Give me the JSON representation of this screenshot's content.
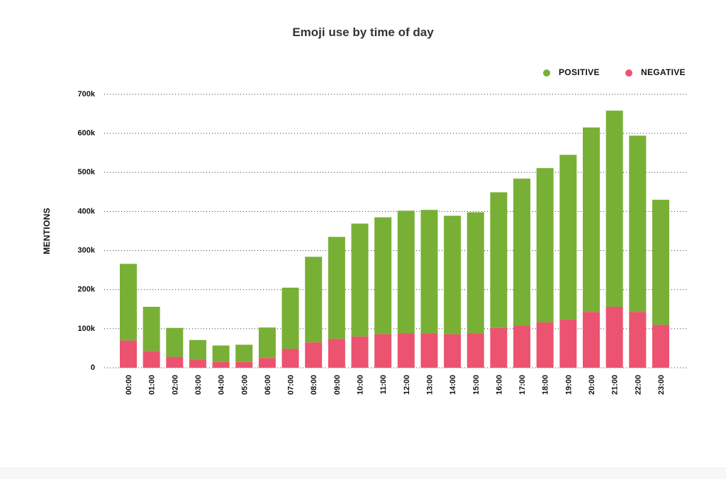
{
  "chart_data": {
    "type": "bar",
    "stacked": true,
    "title": "Emoji use by time of day",
    "ylabel": "MENTIONS",
    "xlabel": "",
    "ylim": [
      0,
      700000
    ],
    "yticks": [
      {
        "value": 0,
        "label": "0"
      },
      {
        "value": 100000,
        "label": "100k"
      },
      {
        "value": 200000,
        "label": "200k"
      },
      {
        "value": 300000,
        "label": "300k"
      },
      {
        "value": 400000,
        "label": "400k"
      },
      {
        "value": 500000,
        "label": "500k"
      },
      {
        "value": 600000,
        "label": "600k"
      },
      {
        "value": 700000,
        "label": "700k"
      }
    ],
    "grid": true,
    "legend_position": "top-right",
    "categories": [
      "00:00",
      "01:00",
      "02:00",
      "03:00",
      "04:00",
      "05:00",
      "06:00",
      "07:00",
      "08:00",
      "09:00",
      "10:00",
      "11:00",
      "12:00",
      "13:00",
      "14:00",
      "15:00",
      "16:00",
      "17:00",
      "18:00",
      "19:00",
      "20:00",
      "21:00",
      "22:00",
      "23:00"
    ],
    "series": [
      {
        "name": "NEGATIVE",
        "color": "#ec5370",
        "values": [
          70000,
          43000,
          28000,
          20000,
          15000,
          15000,
          25000,
          48000,
          65000,
          74000,
          80000,
          86000,
          88000,
          88000,
          86000,
          88000,
          102000,
          108000,
          116000,
          124000,
          143000,
          156000,
          143000,
          110000
        ]
      },
      {
        "name": "POSITIVE",
        "color": "#78b035",
        "values": [
          196000,
          113000,
          74000,
          51000,
          42000,
          44000,
          78000,
          157000,
          219000,
          261000,
          289000,
          299000,
          314000,
          316000,
          303000,
          310000,
          347000,
          376000,
          395000,
          421000,
          472000,
          502000,
          451000,
          320000
        ]
      }
    ]
  }
}
